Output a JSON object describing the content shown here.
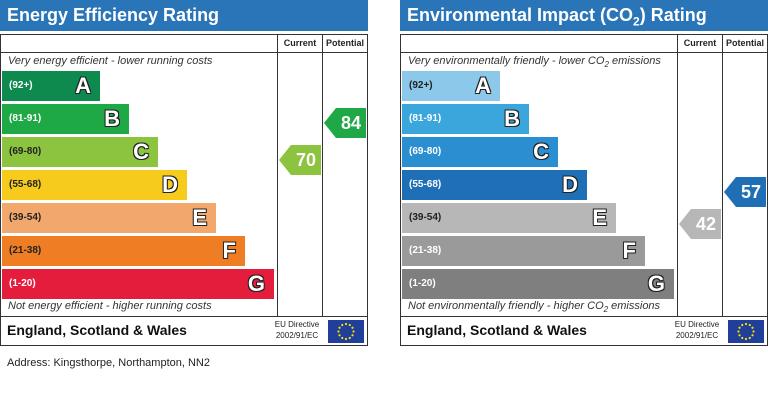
{
  "chart_data": [
    {
      "type": "bar",
      "title": "Energy Efficiency Rating",
      "column_headers": {
        "current": "Current",
        "potential": "Potential"
      },
      "top_caption": "Very energy efficient - lower running costs",
      "bottom_caption": "Not energy efficient - higher running costs",
      "categories": [
        "A",
        "B",
        "C",
        "D",
        "E",
        "F",
        "G"
      ],
      "ranges": [
        "(92+)",
        "(81-91)",
        "(69-80)",
        "(55-68)",
        "(39-54)",
        "(21-38)",
        "(1-20)"
      ],
      "colors": [
        "#0f8a4f",
        "#1fa846",
        "#8cc33f",
        "#f6cb1b",
        "#f2a86c",
        "#ee7d24",
        "#e31d3b"
      ],
      "range_text_colors": [
        "#ffffff",
        "#ffffff",
        "#222222",
        "#222222",
        "#222222",
        "#222222",
        "#ffffff"
      ],
      "current": {
        "value": 70,
        "band": "C",
        "color": "#8cc33f"
      },
      "potential": {
        "value": 84,
        "band": "B",
        "color": "#1fa846"
      },
      "footer": {
        "region": "England, Scotland & Wales",
        "directive_line1": "EU Directive",
        "directive_line2": "2002/91/EC"
      }
    },
    {
      "type": "bar",
      "title_prefix": "Environmental Impact (CO",
      "title_sub": "2",
      "title_suffix": ") Rating",
      "column_headers": {
        "current": "Current",
        "potential": "Potential"
      },
      "top_caption_prefix": "Very environmentally friendly - lower CO",
      "top_caption_sub": "2",
      "top_caption_suffix": " emissions",
      "bottom_caption_prefix": "Not environmentally friendly - higher CO",
      "bottom_caption_sub": "2",
      "bottom_caption_suffix": " emissions",
      "categories": [
        "A",
        "B",
        "C",
        "D",
        "E",
        "F",
        "G"
      ],
      "ranges": [
        "(92+)",
        "(81-91)",
        "(69-80)",
        "(55-68)",
        "(39-54)",
        "(21-38)",
        "(1-20)"
      ],
      "colors": [
        "#8cc8ea",
        "#3aa6dc",
        "#2b8ed0",
        "#1e6fb6",
        "#b7b7b7",
        "#9a9a9a",
        "#7f7f7f"
      ],
      "range_text_colors": [
        "#222222",
        "#ffffff",
        "#ffffff",
        "#ffffff",
        "#222222",
        "#ffffff",
        "#ffffff"
      ],
      "current": {
        "value": 42,
        "band": "E",
        "color": "#b7b7b7"
      },
      "potential": {
        "value": 57,
        "band": "D",
        "color": "#1e6fb6"
      },
      "footer": {
        "region": "England, Scotland & Wales",
        "directive_line1": "EU Directive",
        "directive_line2": "2002/91/EC"
      }
    }
  ],
  "address": "Address: Kingsthorpe, Northampton, NN2"
}
